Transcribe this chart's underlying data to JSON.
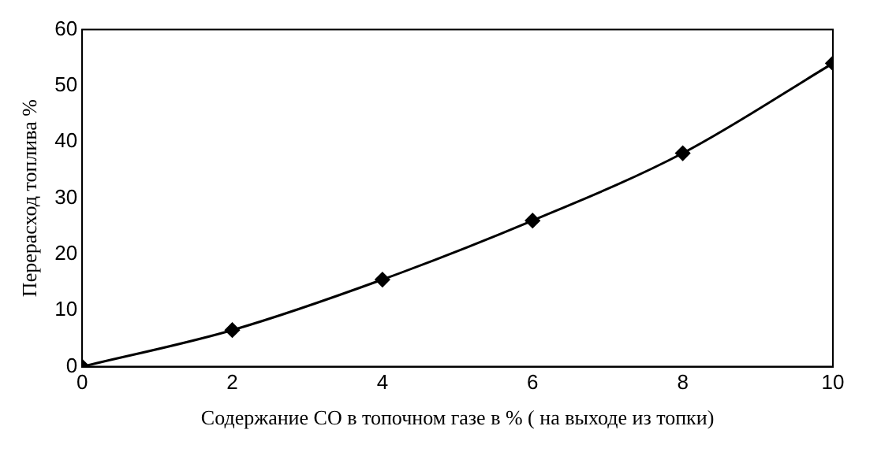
{
  "chart_data": {
    "type": "line",
    "xlabel": "Содержание CO в топочном газе в % ( на выходе из топки)",
    "ylabel": "Перерасход топлива %",
    "x": [
      0,
      2,
      4,
      6,
      8,
      10
    ],
    "series": [
      {
        "color": "#000000",
        "values": [
          0,
          6.5,
          15.5,
          26,
          38,
          54
        ]
      }
    ],
    "xlim": [
      0,
      10
    ],
    "xticks": [
      0,
      2,
      4,
      6,
      8,
      10
    ],
    "ylim": [
      0,
      60
    ],
    "yticks": [
      0,
      10,
      20,
      30,
      40,
      50,
      60
    ],
    "marker": "diamond",
    "line_style": "solid",
    "grid": false,
    "legend": false
  }
}
